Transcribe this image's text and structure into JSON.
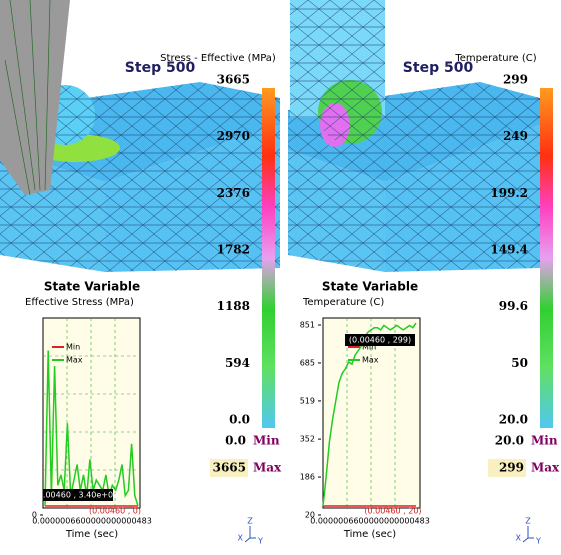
{
  "panels": [
    {
      "title": "Stress - Effective (MPa)",
      "step": "Step 500",
      "colorbar_labels": [
        3665,
        2970,
        2376,
        1782,
        1188,
        594,
        "0.0"
      ],
      "min": {
        "value": "0.0",
        "label": "Min"
      },
      "max": {
        "value": 3665,
        "label": "Max"
      },
      "plot": {
        "heading": "State Variable",
        "subtitle": "Effective Stress (MPa)",
        "xlabel": "Time (sec)",
        "xticks_text": "0.0000006600000000000483",
        "ylim": [
          0,
          3665
        ],
        "yticks": [
          0
        ],
        "series": [
          {
            "name": "Min",
            "color": "#e02020",
            "values": [
              0,
              0,
              0,
              0,
              0,
              0,
              0,
              0,
              0,
              0,
              0,
              0,
              0,
              0,
              0,
              0,
              0,
              0,
              0,
              0,
              0,
              0,
              0,
              0,
              0,
              0,
              0,
              0,
              0,
              0
            ]
          },
          {
            "name": "Max",
            "color": "#22cc22",
            "values": [
              0,
              3000,
              200,
              2700,
              400,
              600,
              300,
              1600,
              200,
              500,
              800,
              300,
              600,
              200,
              900,
              300,
              500,
              400,
              300,
              600,
              200,
              400,
              300,
              500,
              800,
              200,
              300,
              1200,
              200,
              0
            ]
          }
        ],
        "annotations": [
          "(0.00460 , 3.40e+03)",
          "(0.00460 , 0)"
        ]
      }
    },
    {
      "title": "Temperature (C)",
      "step": "Step 500",
      "colorbar_labels": [
        299,
        249,
        199.2,
        149.4,
        99.6,
        50,
        "20.0"
      ],
      "min": {
        "value": "20.0",
        "label": "Min"
      },
      "max": {
        "value": 299,
        "label": "Max"
      },
      "plot": {
        "heading": "State Variable",
        "subtitle": "Temperature (C)",
        "xlabel": "Time (sec)",
        "xticks_text": "0.0000006600000000000483",
        "ylim": [
          20,
          851
        ],
        "yticks": [
          20,
          186,
          352,
          519,
          685,
          851
        ],
        "series": [
          {
            "name": "Min",
            "color": "#e02020",
            "values": [
              20,
              20,
              20,
              20,
              20,
              20,
              20,
              20,
              20,
              20,
              20,
              20,
              20,
              20,
              20,
              20,
              20,
              20,
              20,
              20,
              20,
              20,
              20,
              20,
              20,
              20,
              20,
              20,
              20,
              20
            ]
          },
          {
            "name": "Max",
            "color": "#22cc22",
            "values": [
              20,
              150,
              300,
              400,
              480,
              560,
              600,
              620,
              650,
              640,
              680,
              700,
              720,
              760,
              780,
              790,
              800,
              800,
              790,
              810,
              800,
              790,
              800,
              810,
              800,
              790,
              800,
              810,
              800,
              820
            ]
          }
        ],
        "annotations": [
          "(0.00460 , 299)",
          "(0.00460 , 20)"
        ]
      }
    }
  ],
  "triad": {
    "z": "Z",
    "x": "X",
    "y": "Y"
  }
}
